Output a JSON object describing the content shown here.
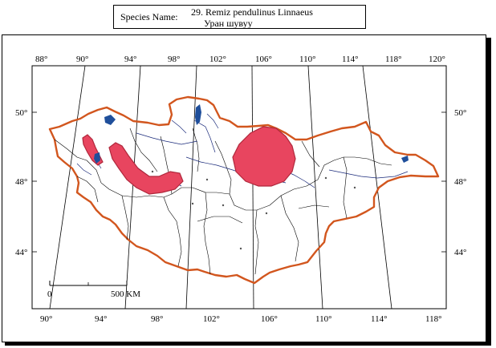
{
  "species": {
    "label": "Species Name:",
    "latin": "29. Remiz pendulinus Linnaeus",
    "mongolian": "Уран шувуу"
  },
  "map": {
    "top_lon_labels": [
      "88°",
      "90°",
      "94°",
      "98°",
      "102°",
      "106°",
      "110°",
      "114°",
      "118°",
      "120°"
    ],
    "bottom_lon_labels": [
      "90°",
      "94°",
      "98°",
      "102°",
      "106°",
      "110°",
      "114°",
      "118°"
    ],
    "left_lat_labels": [
      "50°",
      "48°",
      "44°"
    ],
    "right_lat_labels": [
      "50°",
      "48°",
      "44°"
    ],
    "scale_start": "0",
    "scale_end": "500 KM",
    "colors": {
      "border": "#d2561e",
      "range_fill": "#e8455f",
      "range_stroke": "#b0283c",
      "water": "#1f4f9b",
      "rivers": "#1a2a7a"
    }
  }
}
